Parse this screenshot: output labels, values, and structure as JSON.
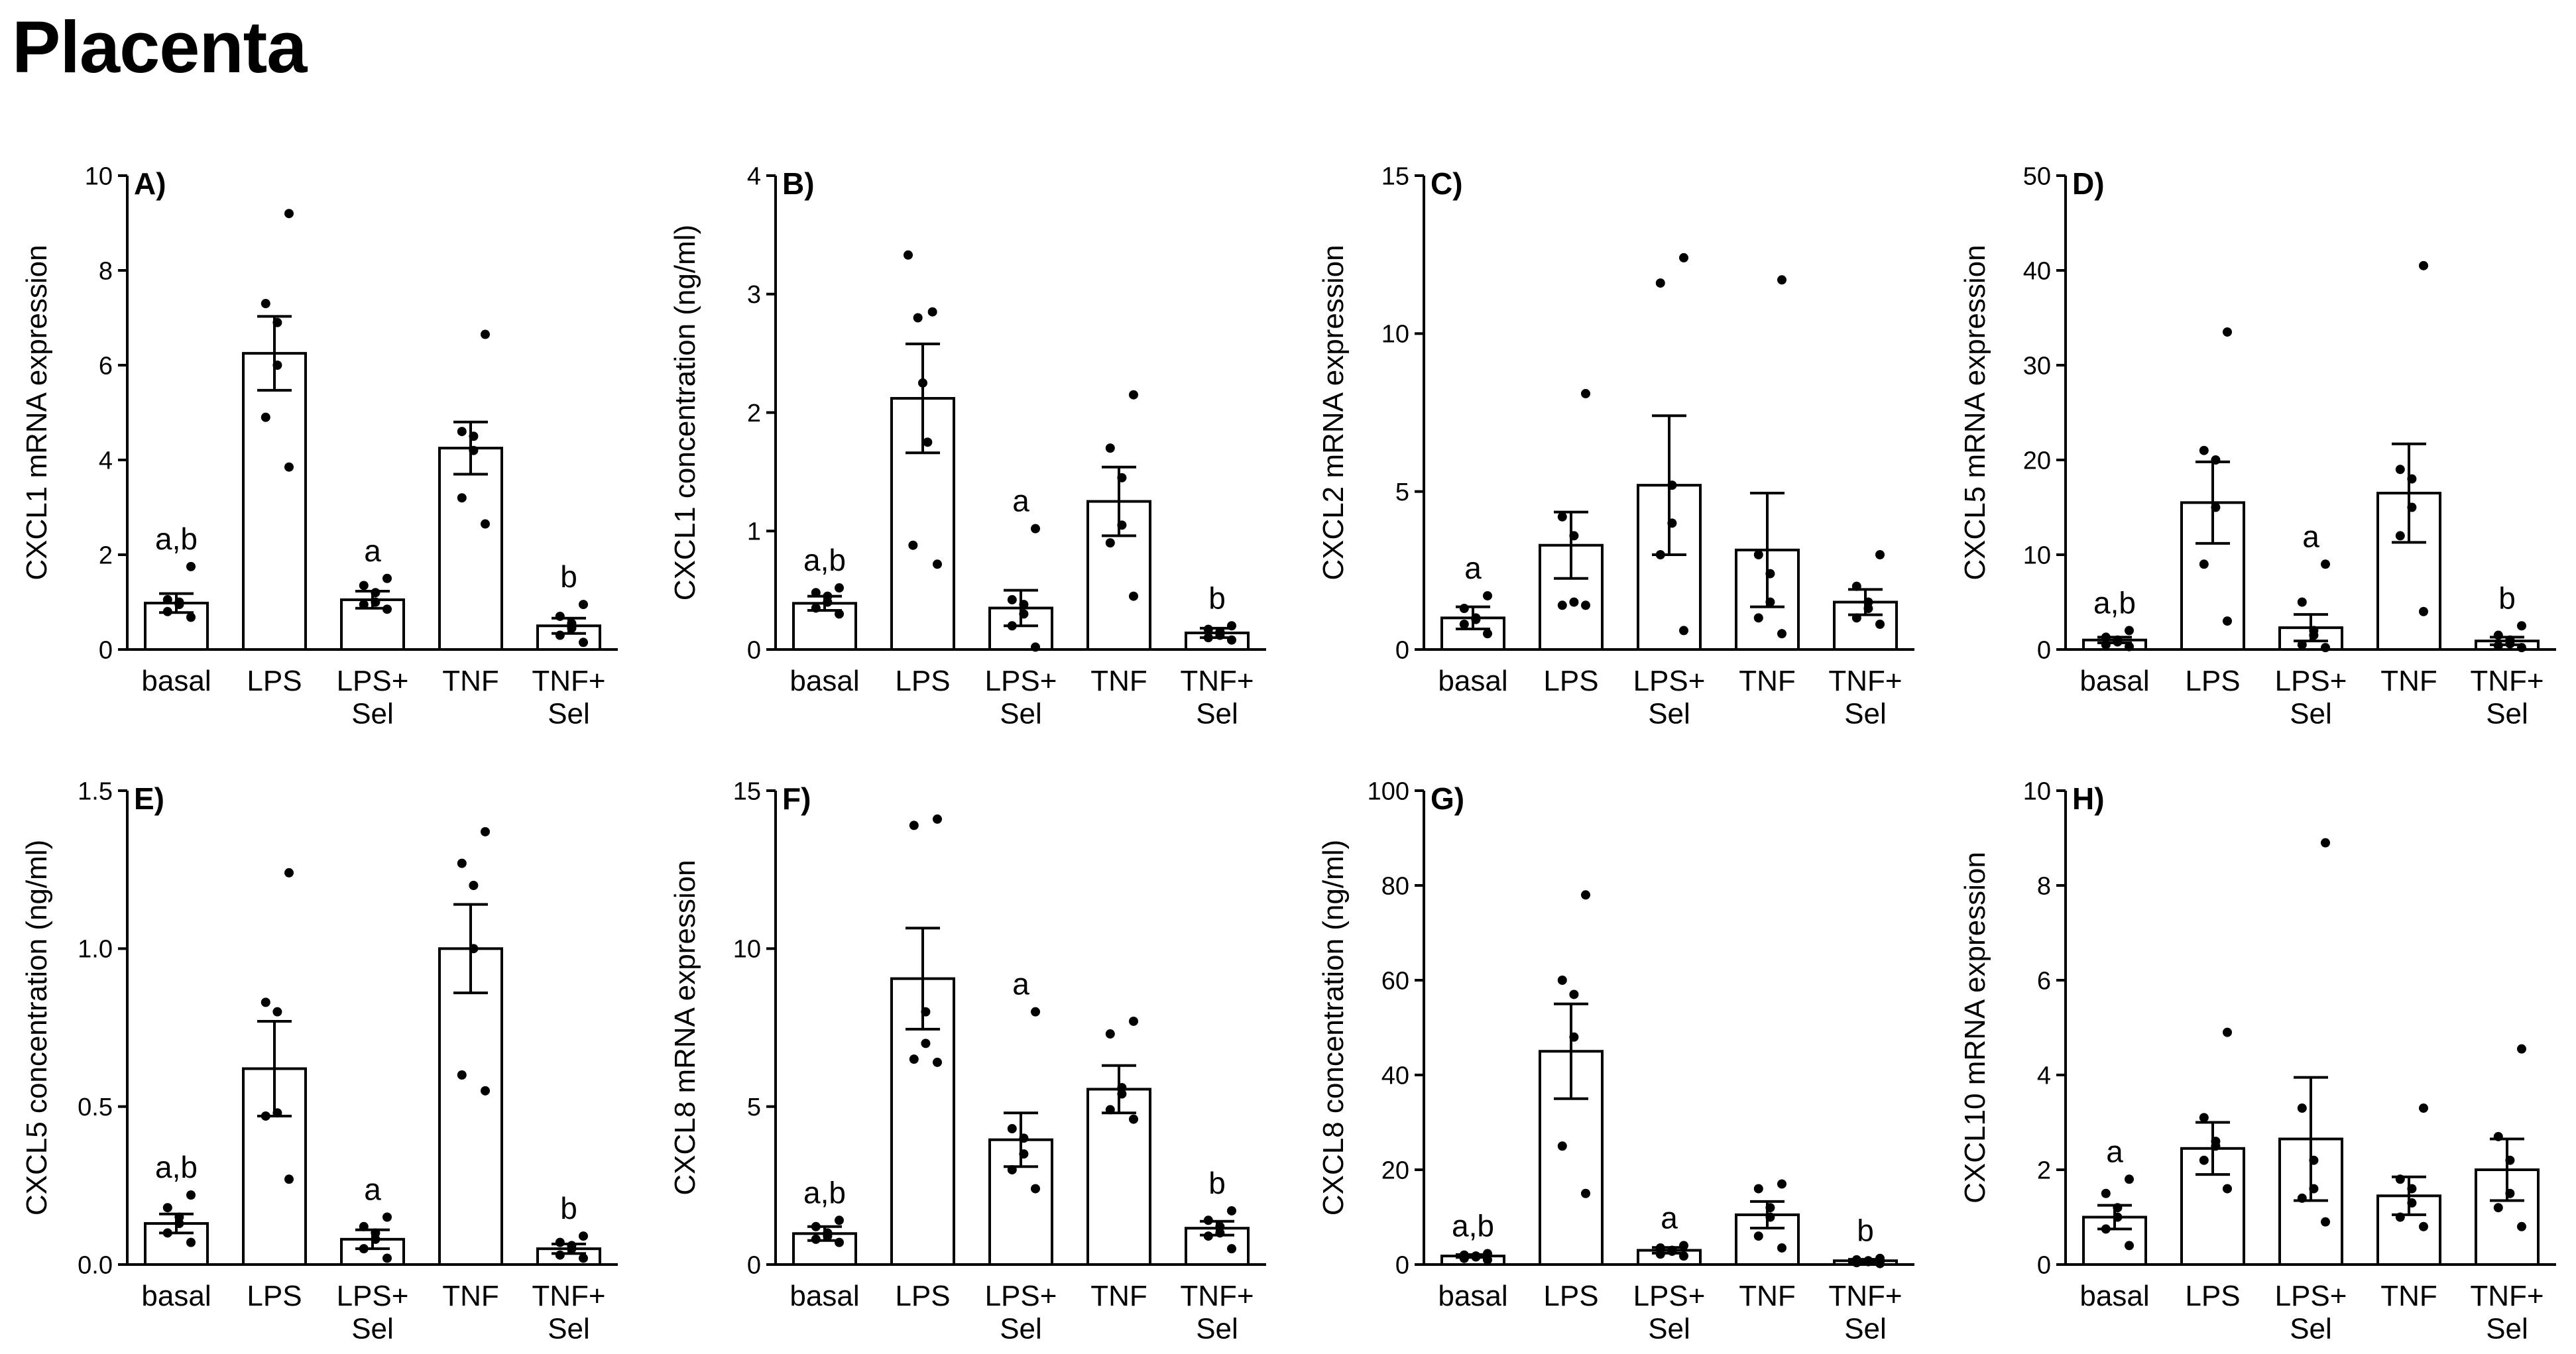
{
  "page": {
    "title": "Placenta"
  },
  "chart_data": [
    {
      "type": "bar",
      "panel": "A)",
      "ylabel": "CXCL1 mRNA expression",
      "categories": [
        "basal",
        "LPS",
        "LPS+ Sel",
        "TNF",
        "TNF+ Sel"
      ],
      "ylim": [
        0,
        10
      ],
      "yticks": [
        "0",
        "2",
        "4",
        "6",
        "8",
        "10"
      ],
      "means": [
        0.98,
        6.25,
        1.05,
        4.25,
        0.5
      ],
      "sem": [
        0.2,
        0.78,
        0.18,
        0.55,
        0.16
      ],
      "points": [
        [
          0.68,
          0.8,
          0.95,
          1.0,
          1.05,
          1.75
        ],
        [
          3.85,
          4.9,
          6.0,
          6.9,
          7.3,
          9.2
        ],
        [
          0.85,
          0.95,
          1.0,
          1.2,
          1.35,
          1.5
        ],
        [
          2.65,
          3.2,
          4.2,
          4.5,
          4.6,
          6.65
        ],
        [
          0.15,
          0.3,
          0.45,
          0.55,
          0.7,
          0.95
        ]
      ],
      "letters": [
        "a,b",
        "",
        "a",
        "",
        "b"
      ]
    },
    {
      "type": "bar",
      "panel": "B)",
      "ylabel": "CXCL1 concentration (ng/ml)",
      "categories": [
        "basal",
        "LPS",
        "LPS+ Sel",
        "TNF",
        "TNF+ Sel"
      ],
      "ylim": [
        0,
        4
      ],
      "yticks": [
        "0",
        "1",
        "2",
        "3",
        "4"
      ],
      "means": [
        0.39,
        2.12,
        0.35,
        1.25,
        0.14
      ],
      "sem": [
        0.06,
        0.46,
        0.15,
        0.29,
        0.04
      ],
      "points": [
        [
          0.3,
          0.35,
          0.4,
          0.45,
          0.48,
          0.52
        ],
        [
          0.72,
          0.88,
          1.75,
          2.25,
          2.8,
          2.85,
          3.33
        ],
        [
          0.02,
          0.2,
          0.3,
          0.38,
          0.42,
          1.02
        ],
        [
          0.45,
          0.9,
          1.05,
          1.45,
          1.7,
          2.15
        ],
        [
          0.08,
          0.1,
          0.12,
          0.15,
          0.17,
          0.2
        ]
      ],
      "letters": [
        "a,b",
        "",
        "a",
        "",
        "b"
      ]
    },
    {
      "type": "bar",
      "panel": "C)",
      "ylabel": "CXCL2 mRNA expression",
      "categories": [
        "basal",
        "LPS",
        "LPS+ Sel",
        "TNF",
        "TNF+ Sel"
      ],
      "ylim": [
        0,
        15
      ],
      "yticks": [
        "0",
        "5",
        "10",
        "15"
      ],
      "means": [
        1.0,
        3.3,
        5.2,
        3.15,
        1.5
      ],
      "sem": [
        0.35,
        1.05,
        2.2,
        1.8,
        0.4
      ],
      "points": [
        [
          0.5,
          0.8,
          0.95,
          1.0,
          1.3,
          1.7
        ],
        [
          1.4,
          1.4,
          1.5,
          3.6,
          4.2,
          8.1
        ],
        [
          0.6,
          3.0,
          4.0,
          5.2,
          11.6,
          12.4
        ],
        [
          0.5,
          1.0,
          1.5,
          2.4,
          3.0,
          11.7
        ],
        [
          0.8,
          1.0,
          1.3,
          1.5,
          2.0,
          3.0
        ]
      ],
      "letters": [
        "a",
        "",
        "",
        "",
        ""
      ]
    },
    {
      "type": "bar",
      "panel": "D)",
      "ylabel": "CXCL5 mRNA expression",
      "categories": [
        "basal",
        "LPS",
        "LPS+ Sel",
        "TNF",
        "TNF+ Sel"
      ],
      "ylim": [
        0,
        50
      ],
      "yticks": [
        "0",
        "10",
        "20",
        "30",
        "40",
        "50"
      ],
      "means": [
        1.0,
        15.5,
        2.3,
        16.5,
        0.9
      ],
      "sem": [
        0.3,
        4.3,
        1.4,
        5.2,
        0.4
      ],
      "points": [
        [
          0.3,
          0.5,
          0.8,
          1.0,
          1.3,
          2.0
        ],
        [
          3.0,
          9.0,
          15.0,
          20.0,
          21.0,
          33.5
        ],
        [
          0.2,
          0.5,
          1.5,
          2.0,
          5.0,
          9.0
        ],
        [
          4.0,
          12.0,
          15.0,
          18.0,
          19.0,
          40.5
        ],
        [
          0.2,
          0.4,
          0.6,
          1.0,
          1.5,
          2.5
        ]
      ],
      "letters": [
        "a,b",
        "",
        "a",
        "",
        "b"
      ]
    },
    {
      "type": "bar",
      "panel": "E)",
      "ylabel": "CXCL5 concentration (ng/ml)",
      "categories": [
        "basal",
        "LPS",
        "LPS+ Sel",
        "TNF",
        "TNF+ Sel"
      ],
      "ylim": [
        0,
        1.5
      ],
      "yticks": [
        "0.0",
        "0.5",
        "1.0",
        "1.5"
      ],
      "means": [
        0.13,
        0.62,
        0.08,
        1.0,
        0.05
      ],
      "sem": [
        0.03,
        0.15,
        0.03,
        0.14,
        0.015
      ],
      "points": [
        [
          0.07,
          0.1,
          0.13,
          0.15,
          0.18,
          0.22
        ],
        [
          0.27,
          0.47,
          0.48,
          0.8,
          0.83,
          1.24
        ],
        [
          0.02,
          0.05,
          0.08,
          0.1,
          0.12,
          0.15
        ],
        [
          0.55,
          0.6,
          1.0,
          1.2,
          1.27,
          1.37
        ],
        [
          0.02,
          0.03,
          0.05,
          0.06,
          0.07,
          0.09
        ]
      ],
      "letters": [
        "a,b",
        "",
        "a",
        "",
        "b"
      ]
    },
    {
      "type": "bar",
      "panel": "F)",
      "ylabel": "CXCL8 mRNA expression",
      "categories": [
        "basal",
        "LPS",
        "LPS+ Sel",
        "TNF",
        "TNF+ Sel"
      ],
      "ylim": [
        0,
        15
      ],
      "yticks": [
        "0",
        "5",
        "10",
        "15"
      ],
      "means": [
        0.98,
        9.05,
        3.95,
        5.55,
        1.15
      ],
      "sem": [
        0.22,
        1.6,
        0.85,
        0.75,
        0.22
      ],
      "points": [
        [
          0.7,
          0.8,
          0.9,
          1.0,
          1.2,
          1.4
        ],
        [
          6.4,
          6.5,
          7.0,
          8.0,
          13.9,
          14.1
        ],
        [
          2.4,
          3.0,
          3.5,
          4.0,
          4.3,
          8.0
        ],
        [
          4.6,
          4.9,
          5.4,
          5.6,
          7.3,
          7.7
        ],
        [
          0.5,
          0.9,
          1.0,
          1.2,
          1.4,
          1.7
        ]
      ],
      "letters": [
        "a,b",
        "",
        "a",
        "",
        "b"
      ]
    },
    {
      "type": "bar",
      "panel": "G)",
      "ylabel": "CXCL8 concentration (ng/ml)",
      "categories": [
        "basal",
        "LPS",
        "LPS+ Sel",
        "TNF",
        "TNF+ Sel"
      ],
      "ylim": [
        0,
        100
      ],
      "yticks": [
        "0",
        "20",
        "40",
        "60",
        "80",
        "100"
      ],
      "means": [
        1.8,
        45.0,
        3.0,
        10.5,
        0.8
      ],
      "sem": [
        0.3,
        10.0,
        0.6,
        2.8,
        0.3
      ],
      "points": [
        [
          1.0,
          1.3,
          1.6,
          1.8,
          2.0,
          2.3
        ],
        [
          15.0,
          25.0,
          48.0,
          57.0,
          60.0,
          78.0
        ],
        [
          1.8,
          2.2,
          2.8,
          3.0,
          3.5,
          4.0
        ],
        [
          3.5,
          6.0,
          10.0,
          12.0,
          16.0,
          17.0
        ],
        [
          0.2,
          0.4,
          0.6,
          0.8,
          1.0,
          1.3
        ]
      ],
      "letters": [
        "a,b",
        "",
        "a",
        "",
        "b"
      ]
    },
    {
      "type": "bar",
      "panel": "H)",
      "ylabel": "CXCL10 mRNA expression",
      "categories": [
        "basal",
        "LPS",
        "LPS+ Sel",
        "TNF",
        "TNF+ Sel"
      ],
      "ylim": [
        0,
        10
      ],
      "yticks": [
        "0",
        "2",
        "4",
        "6",
        "8",
        "10"
      ],
      "means": [
        1.0,
        2.45,
        2.65,
        1.45,
        2.0
      ],
      "sem": [
        0.25,
        0.55,
        1.3,
        0.4,
        0.65
      ],
      "points": [
        [
          0.4,
          0.75,
          1.0,
          1.2,
          1.5,
          1.8
        ],
        [
          1.6,
          2.2,
          2.5,
          2.6,
          3.1,
          4.9
        ],
        [
          0.9,
          1.4,
          1.6,
          2.2,
          3.3,
          8.9
        ],
        [
          0.8,
          1.0,
          1.3,
          1.6,
          1.8,
          3.3
        ],
        [
          0.8,
          1.2,
          1.5,
          2.2,
          2.7,
          4.55
        ]
      ],
      "letters": [
        "a",
        "",
        "",
        "",
        ""
      ]
    }
  ]
}
